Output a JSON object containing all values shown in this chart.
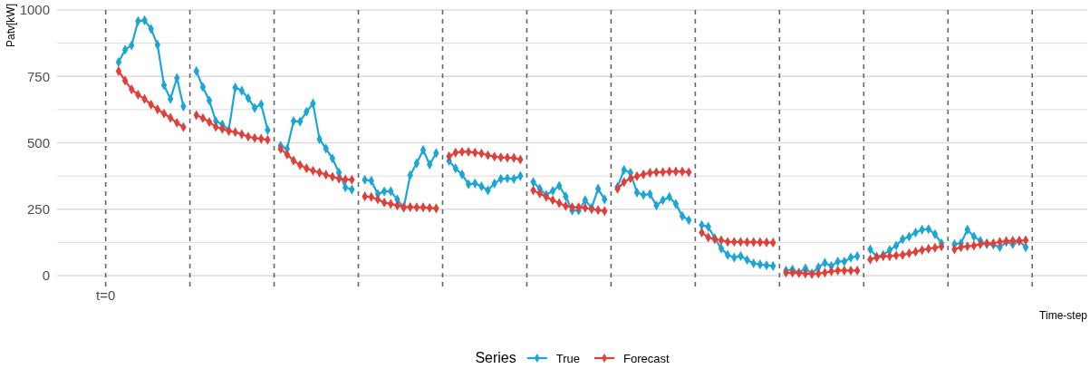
{
  "chart_data": {
    "type": "line",
    "ylabel": "Patv[kW]",
    "xlabel": "Time-step",
    "legend_title": "Series",
    "categories": [
      null,
      null,
      null,
      null,
      null,
      null,
      null,
      "t=0",
      null,
      null,
      null,
      null,
      null,
      null,
      null,
      null,
      null,
      null,
      null,
      null,
      null,
      null,
      null,
      null,
      null,
      null,
      null,
      null,
      null,
      null,
      null,
      null,
      null,
      null,
      null,
      null,
      null,
      null,
      null,
      null,
      null,
      null,
      null,
      null,
      null,
      null,
      null,
      null,
      null,
      null,
      null,
      null,
      null,
      null,
      null,
      null,
      null,
      null,
      null,
      null,
      null,
      null,
      null,
      null,
      null,
      null,
      null,
      null,
      null,
      null,
      null,
      null,
      null,
      null,
      null,
      null,
      null,
      null,
      null,
      null,
      null,
      null,
      null,
      null,
      null,
      null,
      null,
      null,
      null,
      null,
      null,
      null,
      null,
      null,
      null,
      null,
      null,
      null,
      null,
      null,
      null,
      null,
      null,
      null,
      null,
      null,
      null,
      null,
      null,
      null,
      null,
      null,
      null,
      null,
      null,
      null,
      null,
      null,
      null,
      null,
      null,
      null,
      null,
      null,
      null,
      null,
      null,
      null,
      null,
      null,
      null,
      null,
      null,
      null,
      null,
      null,
      null,
      null,
      null,
      null,
      null,
      null,
      null,
      null,
      null,
      null,
      null,
      null,
      null,
      null,
      null,
      null,
      null,
      null,
      null,
      null,
      null,
      null,
      null
    ],
    "series": [
      {
        "name": "True",
        "color": "#1ba6d6",
        "values": [
          null,
          null,
          null,
          null,
          null,
          null,
          null,
          null,
          null,
          804,
          850,
          867,
          958,
          961,
          929,
          869,
          717,
          665,
          744,
          637,
          null,
          770,
          710,
          659,
          582,
          569,
          548,
          708,
          696,
          668,
          631,
          645,
          548,
          null,
          489,
          477,
          582,
          580,
          617,
          648,
          514,
          478,
          441,
          388,
          332,
          324,
          null,
          361,
          357,
          307,
          317,
          318,
          287,
          255,
          378,
          423,
          473,
          418,
          461,
          null,
          432,
          404,
          381,
          344,
          347,
          336,
          321,
          347,
          364,
          366,
          364,
          375,
          null,
          352,
          327,
          304,
          319,
          338,
          298,
          245,
          245,
          284,
          255,
          327,
          287,
          null,
          334,
          398,
          387,
          313,
          304,
          307,
          264,
          284,
          296,
          270,
          224,
          209,
          null,
          190,
          184,
          141,
          102,
          78,
          68,
          74,
          59,
          46,
          42,
          39,
          36,
          null,
          19,
          23,
          11,
          27,
          8,
          31,
          48,
          36,
          53,
          53,
          68,
          73,
          null,
          99,
          71,
          78,
          96,
          113,
          137,
          147,
          162,
          173,
          175,
          156,
          122,
          null,
          118,
          122,
          173,
          147,
          131,
          118,
          116,
          107,
          127,
          118,
          131,
          107,
          null,
          null,
          null,
          null,
          null,
          null,
          null,
          null,
          null
        ]
      },
      {
        "name": "Forecast",
        "color": "#e0403a",
        "values": [
          null,
          null,
          null,
          null,
          null,
          null,
          null,
          null,
          null,
          770,
          734,
          701,
          681,
          665,
          644,
          626,
          610,
          594,
          575,
          559,
          null,
          604,
          593,
          578,
          560,
          552,
          544,
          540,
          532,
          523,
          518,
          515,
          511,
          null,
          477,
          456,
          433,
          416,
          404,
          395,
          388,
          380,
          372,
          365,
          362,
          361,
          null,
          298,
          296,
          287,
          275,
          270,
          264,
          258,
          258,
          257,
          257,
          255,
          253,
          null,
          449,
          463,
          466,
          466,
          463,
          460,
          453,
          448,
          445,
          444,
          443,
          437,
          null,
          321,
          309,
          296,
          284,
          273,
          262,
          257,
          257,
          255,
          250,
          247,
          243,
          null,
          327,
          352,
          366,
          374,
          381,
          387,
          389,
          390,
          392,
          392,
          392,
          389,
          null,
          162,
          144,
          137,
          133,
          127,
          127,
          127,
          126,
          126,
          126,
          125,
          124,
          null,
          11,
          11,
          10,
          8,
          6,
          8,
          11,
          16,
          19,
          19,
          19,
          19,
          null,
          61,
          68,
          73,
          73,
          76,
          78,
          84,
          90,
          96,
          101,
          105,
          110,
          null,
          99,
          107,
          110,
          113,
          118,
          122,
          122,
          127,
          130,
          131,
          131,
          133,
          null,
          null,
          null,
          null,
          null,
          null,
          null,
          null,
          null
        ]
      }
    ],
    "ylim": [
      0,
      1000
    ],
    "yticks": [
      {
        "value": 0,
        "label": "0"
      },
      {
        "value": 125,
        "label": null
      },
      {
        "value": 250,
        "label": "250"
      },
      {
        "value": 375,
        "label": null
      },
      {
        "value": 500,
        "label": "500"
      },
      {
        "value": 625,
        "label": null
      },
      {
        "value": 750,
        "label": "750"
      },
      {
        "value": 875,
        "label": null
      },
      {
        "value": 1000,
        "label": "1000"
      }
    ],
    "grid": "y",
    "legend": "bottom",
    "marker": "diamond",
    "line_style": "solid"
  }
}
